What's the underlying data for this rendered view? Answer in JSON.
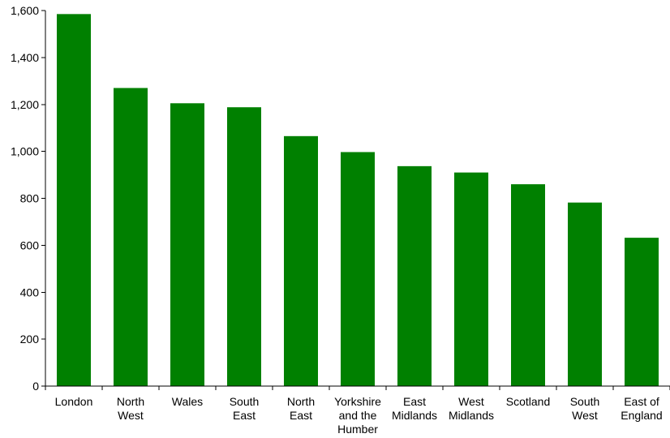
{
  "chart_data": {
    "type": "bar",
    "categories": [
      [
        "London"
      ],
      [
        "North",
        "West"
      ],
      [
        "Wales"
      ],
      [
        "South",
        "East"
      ],
      [
        "North",
        "East"
      ],
      [
        "Yorkshire",
        "and the",
        "Humber"
      ],
      [
        "East",
        "Midlands"
      ],
      [
        "West",
        "Midlands"
      ],
      [
        "Scotland"
      ],
      [
        "South",
        "West"
      ],
      [
        "East of",
        "England"
      ]
    ],
    "values": [
      1585,
      1270,
      1205,
      1188,
      1065,
      997,
      937,
      910,
      860,
      782,
      632
    ],
    "yticks": [
      "0",
      "200",
      "400",
      "600",
      "800",
      "1,000",
      "1,200",
      "1,400",
      "1,600"
    ],
    "ylim": [
      0,
      1600
    ],
    "bar_color": "#008000",
    "grid": false,
    "legend": "none"
  }
}
